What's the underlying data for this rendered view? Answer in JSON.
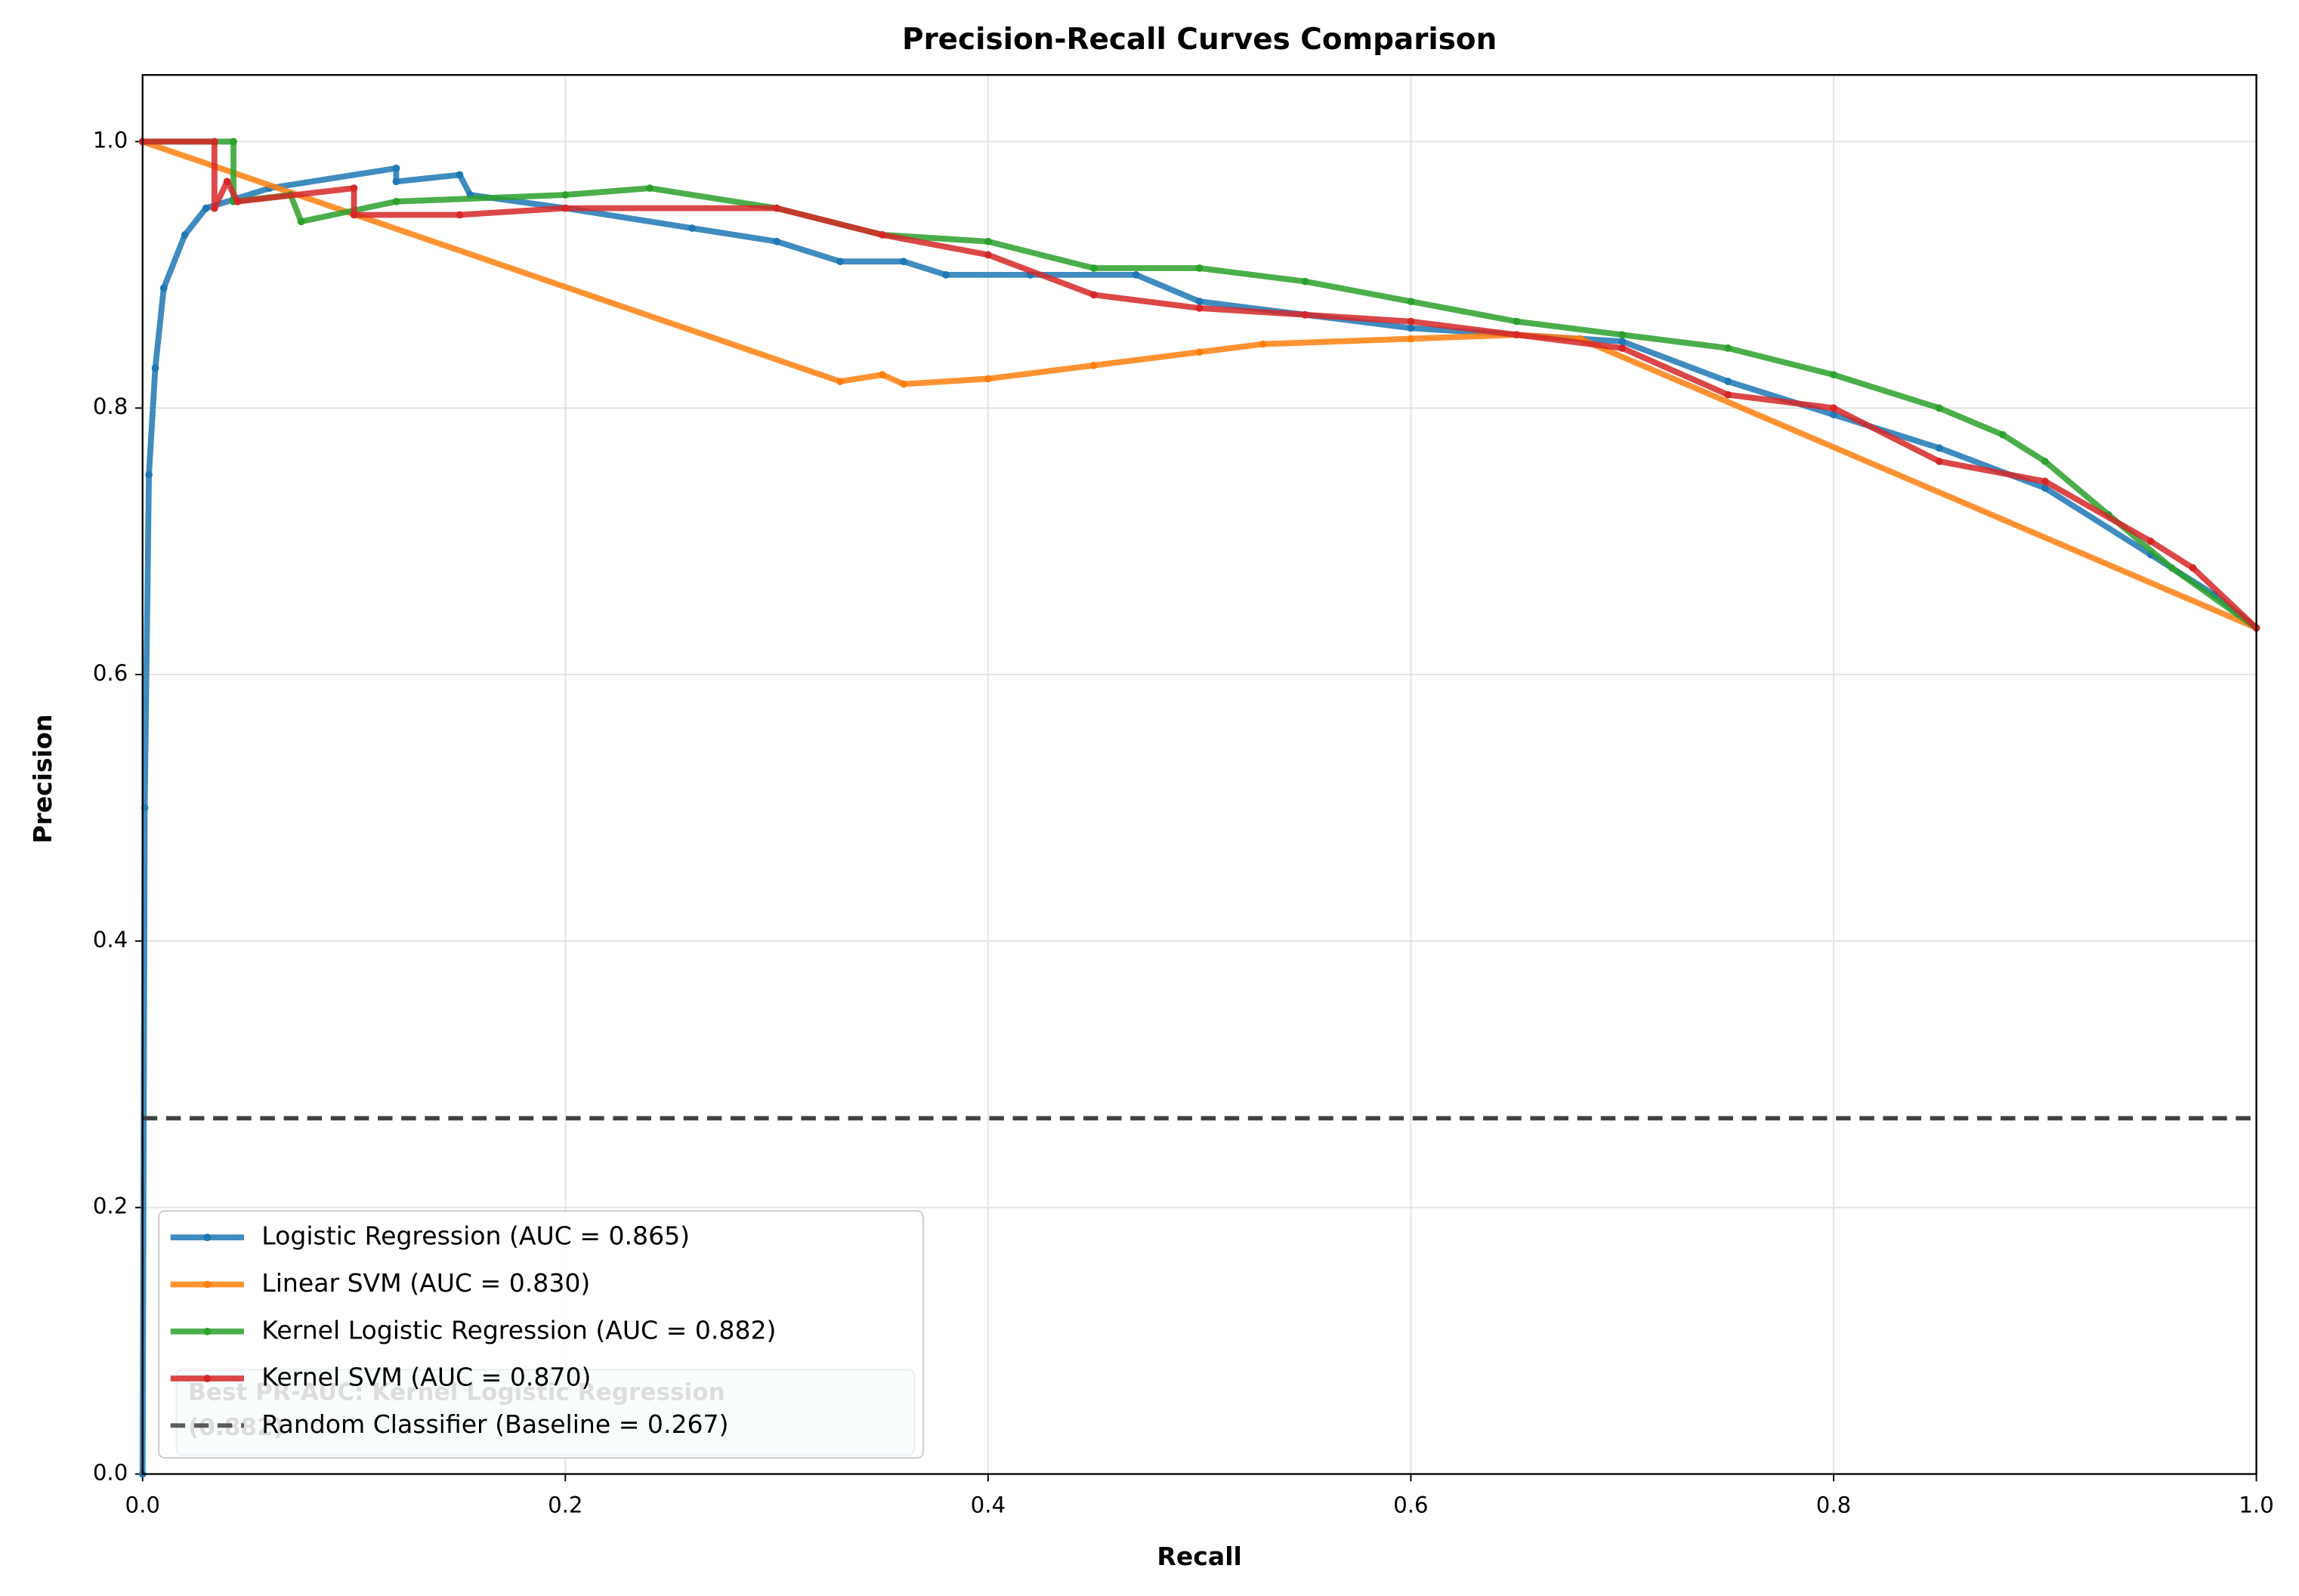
{
  "chart_data": {
    "type": "line",
    "title": "Precision-Recall Curves Comparison",
    "x_label": "Recall",
    "y_label": "Precision",
    "xlim": [
      0,
      1
    ],
    "ylim": [
      0,
      1.05
    ],
    "xticks": [
      {
        "value": 0,
        "label": "0.0"
      },
      0.2,
      0.4,
      0.6,
      0.8,
      {
        "value": 1,
        "label": "1.0"
      }
    ],
    "yticks": [
      {
        "value": 0,
        "label": "0.0"
      },
      0.2,
      0.4,
      0.6,
      0.8,
      {
        "value": 1,
        "label": "1.0"
      }
    ],
    "grid": true,
    "legend": "lower left",
    "annotation": {
      "lines": [
        "Best PR-AUC: Kernel Logistic Regression",
        "(0.882)"
      ]
    },
    "series": [
      {
        "name": "Logistic Regression (AUC = 0.865)",
        "color": "#1f77b4",
        "x": [
          0,
          0.001,
          0.003,
          0.006,
          0.01,
          0.02,
          0.03,
          0.06,
          0.12,
          0.12,
          0.15,
          0.155,
          0.2,
          0.26,
          0.3,
          0.33,
          0.36,
          0.38,
          0.42,
          0.47,
          0.5,
          0.55,
          0.6,
          0.65,
          0.7,
          0.75,
          0.8,
          0.85,
          0.9,
          0.95,
          0.98,
          1.0
        ],
        "values": [
          0,
          0.5,
          0.75,
          0.83,
          0.89,
          0.93,
          0.95,
          0.965,
          0.98,
          0.97,
          0.975,
          0.96,
          0.95,
          0.935,
          0.925,
          0.91,
          0.91,
          0.9,
          0.9,
          0.9,
          0.88,
          0.87,
          0.86,
          0.855,
          0.85,
          0.82,
          0.795,
          0.77,
          0.74,
          0.69,
          0.66,
          0.635
        ]
      },
      {
        "name": "Linear SVM (AUC = 0.830)",
        "color": "#ff7f0e",
        "x": [
          0,
          0.33,
          0.35,
          0.36,
          0.4,
          0.45,
          0.5,
          0.53,
          0.6,
          0.65,
          0.68,
          1.0
        ],
        "values": [
          1.0,
          0.82,
          0.825,
          0.818,
          0.822,
          0.832,
          0.842,
          0.848,
          0.852,
          0.855,
          0.852,
          0.635
        ]
      },
      {
        "name": "Kernel Logistic Regression (AUC = 0.882)",
        "color": "#2ca02c",
        "x": [
          0,
          0.043,
          0.043,
          0.07,
          0.075,
          0.12,
          0.2,
          0.24,
          0.3,
          0.35,
          0.4,
          0.45,
          0.5,
          0.55,
          0.6,
          0.65,
          0.7,
          0.75,
          0.8,
          0.85,
          0.88,
          0.9,
          0.93,
          0.96,
          1.0
        ],
        "values": [
          1.0,
          1.0,
          0.955,
          0.96,
          0.94,
          0.955,
          0.96,
          0.965,
          0.95,
          0.93,
          0.925,
          0.905,
          0.905,
          0.895,
          0.88,
          0.865,
          0.855,
          0.845,
          0.825,
          0.8,
          0.78,
          0.76,
          0.72,
          0.68,
          0.635
        ]
      },
      {
        "name": "Kernel SVM (AUC = 0.870)",
        "color": "#d62728",
        "x": [
          0,
          0.034,
          0.034,
          0.04,
          0.045,
          0.1,
          0.1,
          0.15,
          0.2,
          0.3,
          0.35,
          0.4,
          0.45,
          0.5,
          0.55,
          0.6,
          0.65,
          0.7,
          0.75,
          0.8,
          0.85,
          0.9,
          0.95,
          0.97,
          1.0
        ],
        "values": [
          1.0,
          1.0,
          0.95,
          0.97,
          0.955,
          0.965,
          0.945,
          0.945,
          0.95,
          0.95,
          0.93,
          0.915,
          0.885,
          0.875,
          0.87,
          0.865,
          0.855,
          0.845,
          0.81,
          0.8,
          0.76,
          0.745,
          0.7,
          0.68,
          0.635
        ]
      },
      {
        "name": "Random Classifier (Baseline = 0.267)",
        "color": "#404040",
        "dashed": true,
        "x": [
          0,
          1
        ],
        "values": [
          0.267,
          0.267
        ]
      }
    ]
  }
}
